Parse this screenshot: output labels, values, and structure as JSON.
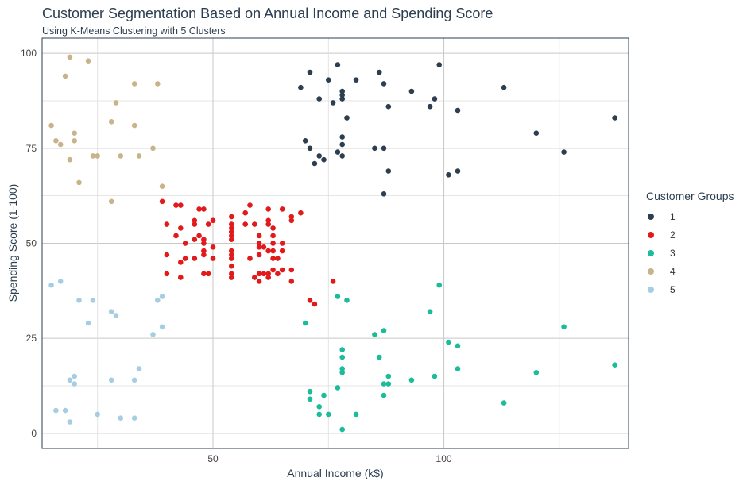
{
  "chart_data": {
    "type": "scatter",
    "title": "Customer Segmentation Based on Annual Income and Spending Score",
    "subtitle": "Using K-Means Clustering with 5 Clusters",
    "xlabel": "Annual Income (k$)",
    "ylabel": "Spending Score (1-100)",
    "xlim": [
      13,
      140
    ],
    "ylim": [
      -4,
      104
    ],
    "xticks": [
      50,
      100
    ],
    "yticks": [
      0,
      25,
      50,
      75,
      100
    ],
    "grid": true,
    "legend": {
      "title": "Customer Groups",
      "position": "right"
    },
    "series": [
      {
        "name": "1",
        "color": "#2c3e50",
        "points": [
          [
            69,
            91
          ],
          [
            70,
            77
          ],
          [
            71,
            95
          ],
          [
            71,
            75
          ],
          [
            72,
            71
          ],
          [
            73,
            88
          ],
          [
            73,
            73
          ],
          [
            74,
            72
          ],
          [
            75,
            93
          ],
          [
            76,
            87
          ],
          [
            77,
            97
          ],
          [
            77,
            74
          ],
          [
            78,
            90
          ],
          [
            78,
            89
          ],
          [
            78,
            88
          ],
          [
            78,
            78
          ],
          [
            78,
            76
          ],
          [
            78,
            73
          ],
          [
            79,
            83
          ],
          [
            81,
            93
          ],
          [
            85,
            75
          ],
          [
            86,
            95
          ],
          [
            87,
            92
          ],
          [
            87,
            75
          ],
          [
            87,
            63
          ],
          [
            88,
            86
          ],
          [
            88,
            69
          ],
          [
            93,
            90
          ],
          [
            97,
            86
          ],
          [
            98,
            88
          ],
          [
            99,
            97
          ],
          [
            101,
            68
          ],
          [
            103,
            85
          ],
          [
            103,
            69
          ],
          [
            113,
            91
          ],
          [
            120,
            79
          ],
          [
            126,
            74
          ],
          [
            137,
            83
          ]
        ]
      },
      {
        "name": "2",
        "color": "#e31a1c",
        "points": [
          [
            39,
            61
          ],
          [
            40,
            55
          ],
          [
            40,
            47
          ],
          [
            40,
            42
          ],
          [
            42,
            52
          ],
          [
            42,
            60
          ],
          [
            43,
            54
          ],
          [
            43,
            60
          ],
          [
            43,
            45
          ],
          [
            43,
            41
          ],
          [
            44,
            50
          ],
          [
            44,
            46
          ],
          [
            46,
            51
          ],
          [
            46,
            46
          ],
          [
            46,
            56
          ],
          [
            46,
            55
          ],
          [
            47,
            52
          ],
          [
            47,
            59
          ],
          [
            48,
            51
          ],
          [
            48,
            59
          ],
          [
            48,
            50
          ],
          [
            48,
            48
          ],
          [
            48,
            47
          ],
          [
            48,
            42
          ],
          [
            49,
            55
          ],
          [
            49,
            42
          ],
          [
            50,
            49
          ],
          [
            50,
            56
          ],
          [
            50,
            46
          ],
          [
            54,
            47
          ],
          [
            54,
            54
          ],
          [
            54,
            53
          ],
          [
            54,
            48
          ],
          [
            54,
            52
          ],
          [
            54,
            42
          ],
          [
            54,
            51
          ],
          [
            54,
            55
          ],
          [
            54,
            41
          ],
          [
            54,
            44
          ],
          [
            54,
            57
          ],
          [
            54,
            46
          ],
          [
            57,
            58
          ],
          [
            57,
            55
          ],
          [
            58,
            60
          ],
          [
            58,
            46
          ],
          [
            59,
            55
          ],
          [
            59,
            41
          ],
          [
            60,
            49
          ],
          [
            60,
            40
          ],
          [
            60,
            42
          ],
          [
            60,
            52
          ],
          [
            60,
            47
          ],
          [
            60,
            50
          ],
          [
            61,
            42
          ],
          [
            61,
            49
          ],
          [
            62,
            41
          ],
          [
            62,
            48
          ],
          [
            62,
            59
          ],
          [
            62,
            55
          ],
          [
            62,
            56
          ],
          [
            62,
            42
          ],
          [
            63,
            50
          ],
          [
            63,
            46
          ],
          [
            63,
            43
          ],
          [
            63,
            48
          ],
          [
            63,
            52
          ],
          [
            63,
            54
          ],
          [
            64,
            42
          ],
          [
            64,
            46
          ],
          [
            65,
            48
          ],
          [
            65,
            50
          ],
          [
            65,
            43
          ],
          [
            65,
            59
          ],
          [
            67,
            43
          ],
          [
            67,
            57
          ],
          [
            67,
            56
          ],
          [
            67,
            40
          ],
          [
            69,
            58
          ],
          [
            71,
            35
          ],
          [
            72,
            34
          ],
          [
            76,
            40
          ]
        ]
      },
      {
        "name": "3",
        "color": "#1abc9c",
        "points": [
          [
            70,
            29
          ],
          [
            71,
            11
          ],
          [
            71,
            9
          ],
          [
            73,
            5
          ],
          [
            73,
            7
          ],
          [
            74,
            10
          ],
          [
            75,
            5
          ],
          [
            77,
            12
          ],
          [
            77,
            36
          ],
          [
            78,
            22
          ],
          [
            78,
            17
          ],
          [
            78,
            20
          ],
          [
            78,
            16
          ],
          [
            78,
            1
          ],
          [
            79,
            35
          ],
          [
            81,
            5
          ],
          [
            85,
            26
          ],
          [
            86,
            20
          ],
          [
            87,
            27
          ],
          [
            87,
            13
          ],
          [
            87,
            10
          ],
          [
            88,
            13
          ],
          [
            88,
            15
          ],
          [
            93,
            14
          ],
          [
            97,
            32
          ],
          [
            98,
            15
          ],
          [
            99,
            39
          ],
          [
            101,
            24
          ],
          [
            103,
            17
          ],
          [
            103,
            23
          ],
          [
            113,
            8
          ],
          [
            120,
            16
          ],
          [
            126,
            28
          ],
          [
            137,
            18
          ]
        ]
      },
      {
        "name": "4",
        "color": "#c8b38a",
        "points": [
          [
            15,
            81
          ],
          [
            16,
            77
          ],
          [
            17,
            76
          ],
          [
            18,
            94
          ],
          [
            19,
            72
          ],
          [
            19,
            99
          ],
          [
            20,
            77
          ],
          [
            20,
            79
          ],
          [
            21,
            66
          ],
          [
            23,
            98
          ],
          [
            24,
            73
          ],
          [
            25,
            73
          ],
          [
            28,
            82
          ],
          [
            28,
            61
          ],
          [
            29,
            87
          ],
          [
            30,
            73
          ],
          [
            33,
            81
          ],
          [
            33,
            92
          ],
          [
            34,
            73
          ],
          [
            37,
            75
          ],
          [
            38,
            92
          ],
          [
            39,
            65
          ]
        ]
      },
      {
        "name": "5",
        "color": "#a6cee3",
        "points": [
          [
            15,
            39
          ],
          [
            16,
            6
          ],
          [
            17,
            40
          ],
          [
            18,
            6
          ],
          [
            19,
            3
          ],
          [
            19,
            14
          ],
          [
            20,
            15
          ],
          [
            20,
            13
          ],
          [
            21,
            35
          ],
          [
            23,
            29
          ],
          [
            24,
            35
          ],
          [
            25,
            5
          ],
          [
            28,
            14
          ],
          [
            28,
            32
          ],
          [
            29,
            31
          ],
          [
            30,
            4
          ],
          [
            33,
            4
          ],
          [
            33,
            14
          ],
          [
            34,
            17
          ],
          [
            37,
            26
          ],
          [
            38,
            35
          ],
          [
            39,
            36
          ],
          [
            39,
            28
          ]
        ]
      }
    ]
  }
}
